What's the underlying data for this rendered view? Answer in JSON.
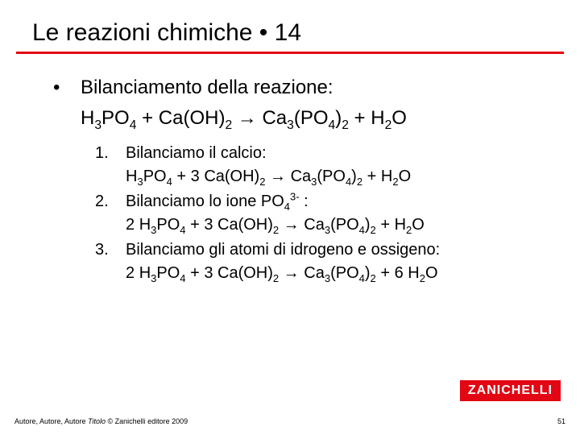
{
  "title": "Le reazioni chimiche • 14",
  "colors": {
    "accent": "#e30613",
    "text": "#000000",
    "background": "#ffffff"
  },
  "bullet_text": "Bilanciamento della reazione:",
  "main_equation": {
    "lhs1": "H",
    "lhs1_sub1": "3",
    "lhs1_mid": "PO",
    "lhs1_sub2": "4",
    "plus1": " + ",
    "lhs2": "Ca(OH)",
    "lhs2_sub": "2",
    "arrow": " → ",
    "rhs1": "Ca",
    "rhs1_sub1": "3",
    "rhs1_mid": "(PO",
    "rhs1_sub2": "4",
    "rhs1_end": ")",
    "rhs1_sub3": "2",
    "plus2": " + ",
    "rhs2": "H",
    "rhs2_sub": "2",
    "rhs2_end": "O"
  },
  "steps": [
    {
      "num": "1.",
      "text": "Bilanciamo il calcio:",
      "eq": {
        "c1": "",
        "t1": "H",
        "s1": "3",
        "t2": "PO",
        "s2": "4",
        "plus1": " + ",
        "c2": "3 ",
        "t3": "Ca(OH)",
        "s3": "2",
        "arrow": " → ",
        "t4": "Ca",
        "s4": "3",
        "t5": "(PO",
        "s5": "4",
        "t6": ")",
        "s6": "2",
        "plus2": " + ",
        "c3": "",
        "t7": "H",
        "s7": "2",
        "t8": "O"
      }
    },
    {
      "num": "2.",
      "text_a": "Bilanciamo lo ione PO",
      "text_sub": "4",
      "text_sup": "3-",
      "text_b": " :",
      "eq": {
        "c1": "2 ",
        "t1": "H",
        "s1": "3",
        "t2": "PO",
        "s2": "4",
        "plus1": " + ",
        "c2": "3 ",
        "t3": "Ca(OH)",
        "s3": "2",
        "arrow": " → ",
        "t4": "Ca",
        "s4": "3",
        "t5": "(PO",
        "s5": "4",
        "t6": ")",
        "s6": "2",
        "plus2": " + ",
        "c3": "",
        "t7": "H",
        "s7": "2",
        "t8": "O"
      }
    },
    {
      "num": "3.",
      "text": "Bilanciamo gli atomi di idrogeno e ossigeno:",
      "eq": {
        "c1": "2 ",
        "t1": "H",
        "s1": "3",
        "t2": "PO",
        "s2": "4",
        "plus1": " + ",
        "c2": "3 ",
        "t3": "Ca(OH)",
        "s3": "2",
        "arrow": " → ",
        "t4": "Ca",
        "s4": "3",
        "t5": "(PO",
        "s5": "4",
        "t6": ")",
        "s6": "2",
        "plus2": " + ",
        "c3": "6 ",
        "t7": "H",
        "s7": "2",
        "t8": "O"
      }
    }
  ],
  "footer": {
    "authors": "Autore, Autore, Autore ",
    "title_italic": "Titolo",
    "copyright": " © Zanichelli editore 2009",
    "page": "51"
  },
  "logo": "ZANICHELLI"
}
